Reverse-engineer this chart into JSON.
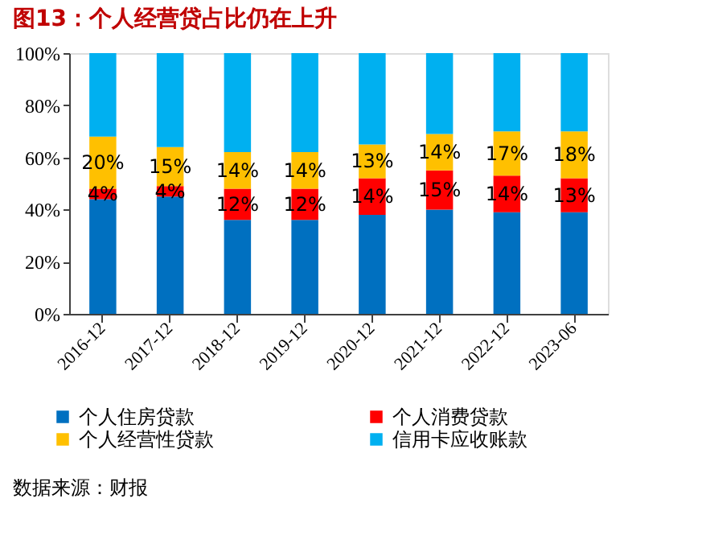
{
  "chart_data": {
    "type": "bar",
    "stacked": true,
    "title": "图13：个人经营贷占比仍在上升",
    "categories": [
      "2016-12",
      "2017-12",
      "2018-12",
      "2019-12",
      "2020-12",
      "2021-12",
      "2022-12",
      "2023-06"
    ],
    "series": [
      {
        "name": "个人住房贷款",
        "color": "#0070c0",
        "values": [
          44,
          45,
          36,
          36,
          38,
          40,
          39,
          39
        ],
        "value_labels": [
          null,
          null,
          null,
          null,
          null,
          null,
          null,
          null
        ]
      },
      {
        "name": "个人消费贷款",
        "color": "#ff0000",
        "values": [
          4,
          4,
          12,
          12,
          14,
          15,
          14,
          13
        ],
        "value_labels": [
          "4%",
          "4%",
          "12%",
          "12%",
          "14%",
          "15%",
          "14%",
          "13%"
        ]
      },
      {
        "name": "个人经营性贷款",
        "color": "#ffc000",
        "values": [
          20,
          15,
          14,
          14,
          13,
          14,
          17,
          18
        ],
        "value_labels": [
          "20%",
          "15%",
          "14%",
          "14%",
          "13%",
          "14%",
          "17%",
          "18%"
        ]
      },
      {
        "name": "信用卡应收账款",
        "color": "#00b0f0",
        "values": [
          32,
          36,
          38,
          38,
          35,
          31,
          30,
          30
        ],
        "value_labels": [
          null,
          null,
          null,
          null,
          null,
          null,
          null,
          null
        ]
      }
    ],
    "ylim": [
      0,
      100
    ],
    "yticks": [
      {
        "value": 0,
        "label": "0%"
      },
      {
        "value": 20,
        "label": "20%"
      },
      {
        "value": 40,
        "label": "40%"
      },
      {
        "value": 60,
        "label": "60%"
      },
      {
        "value": 80,
        "label": "80%"
      },
      {
        "value": 100,
        "label": "100%"
      }
    ],
    "grid": false,
    "legend": "bottom",
    "annotations": [
      "数据来源：财报"
    ]
  }
}
